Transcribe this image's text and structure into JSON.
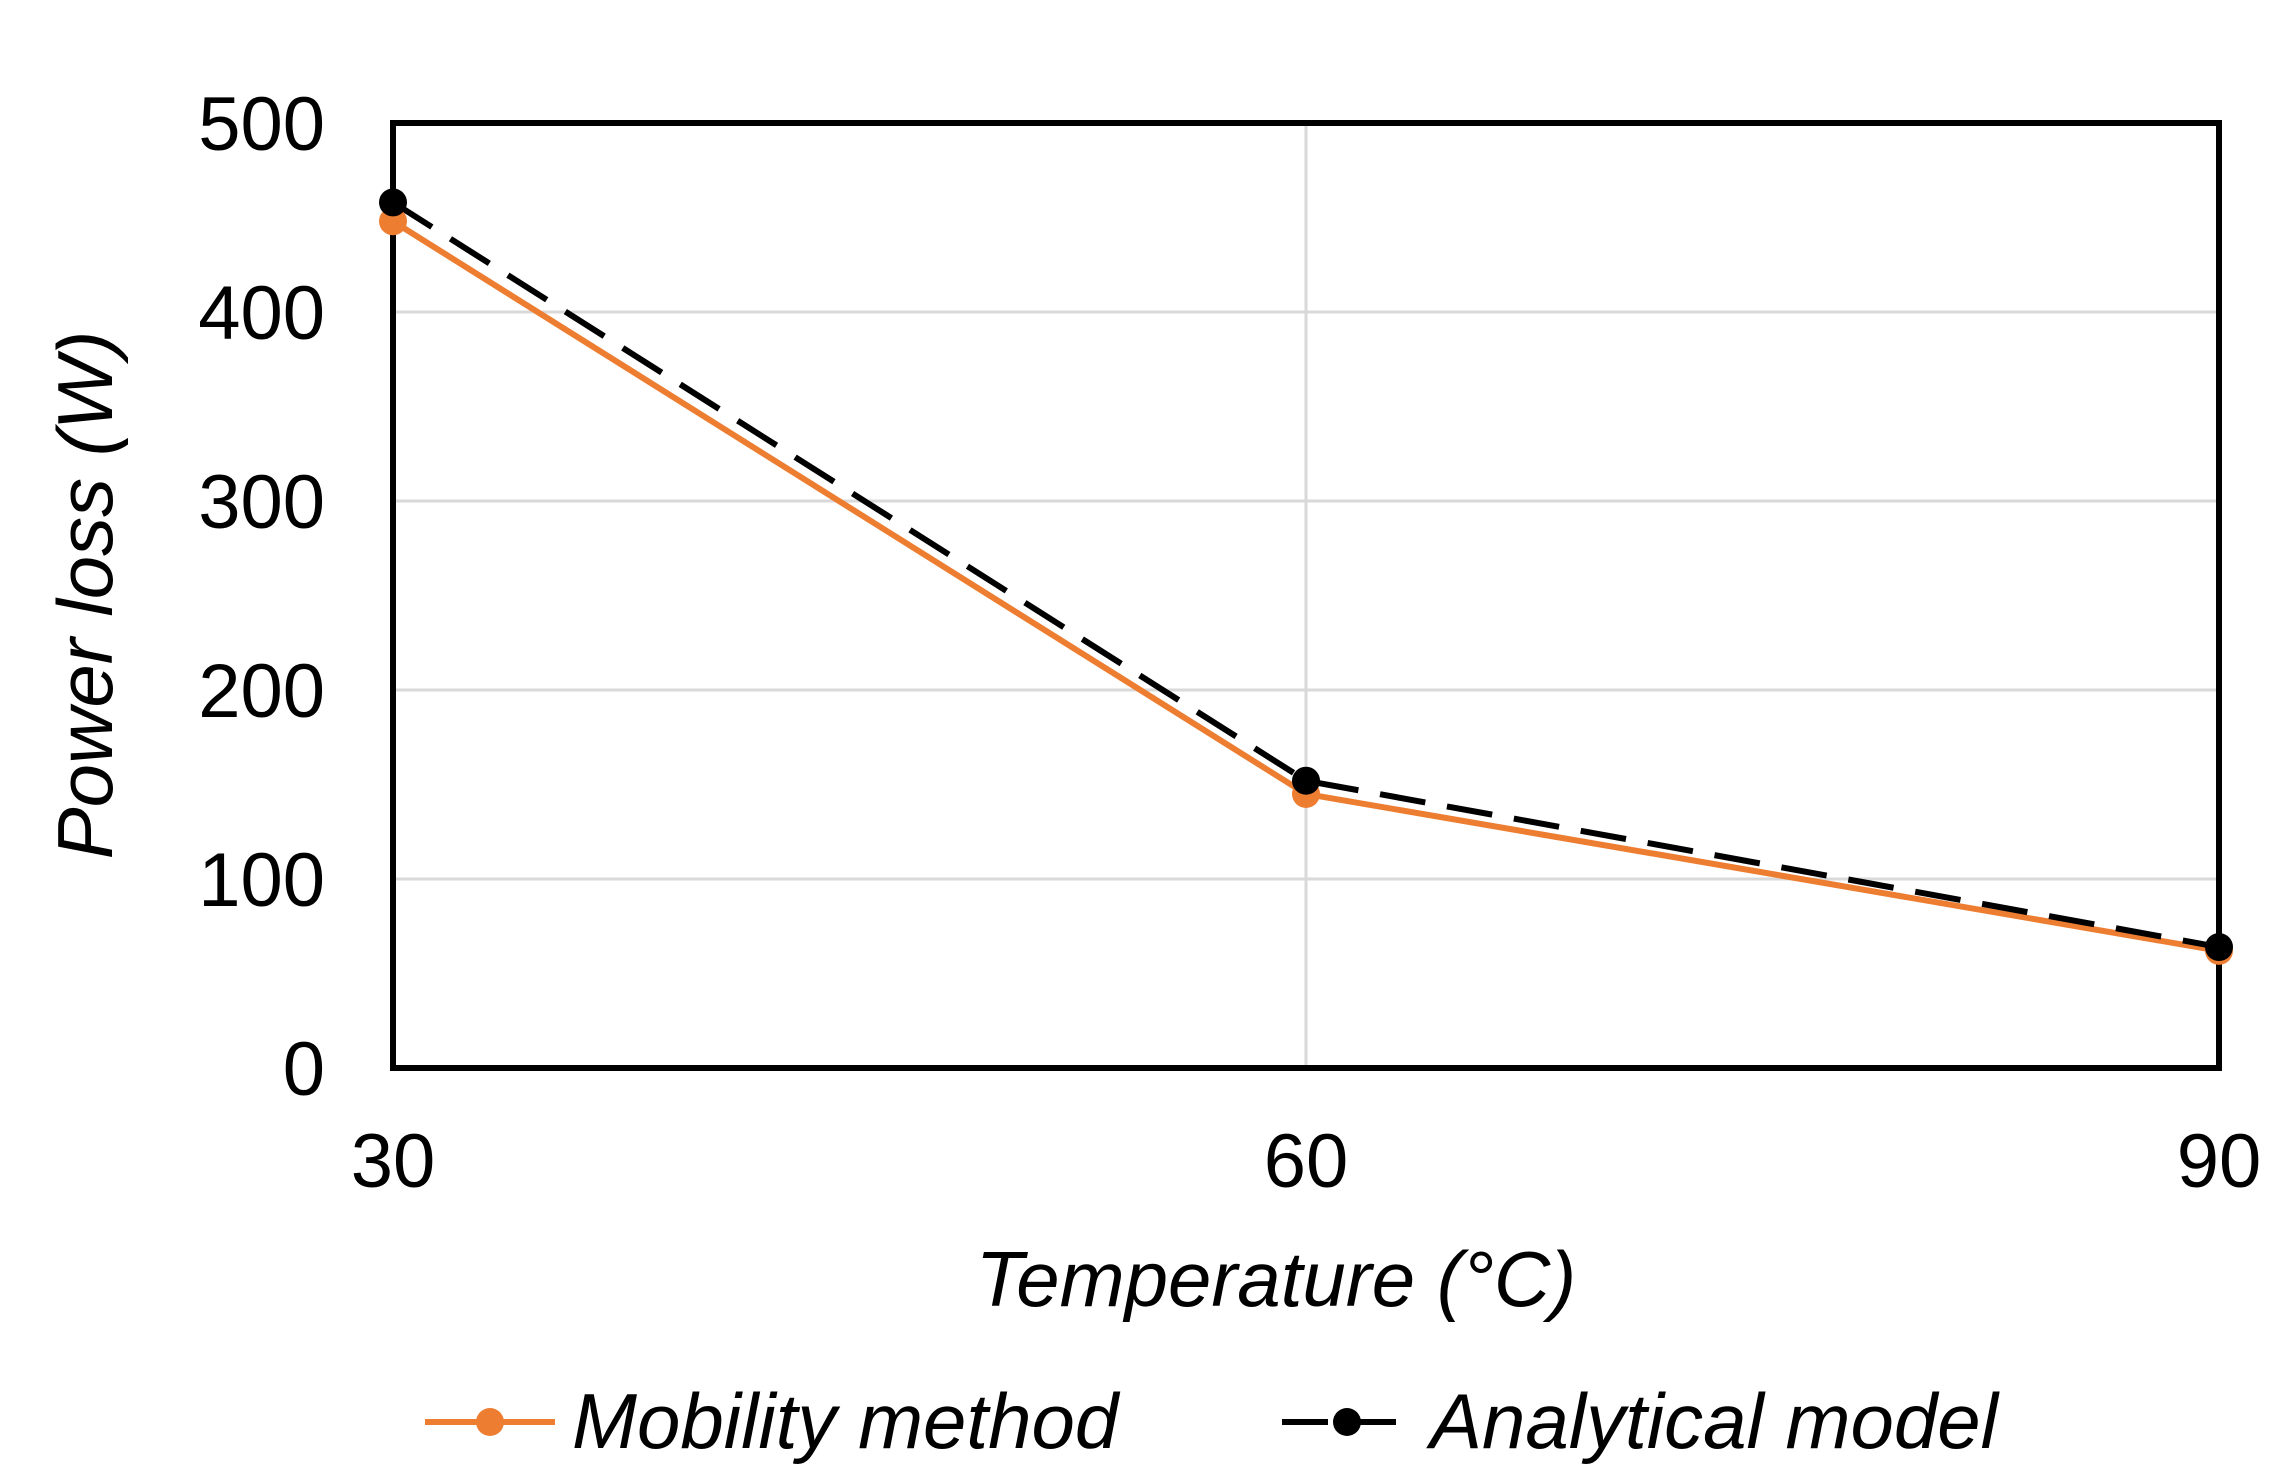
{
  "chart_data": {
    "type": "line",
    "title": "",
    "xlabel": "Temperature (°C)",
    "ylabel": "Power loss (W)",
    "x": [
      30,
      60,
      90
    ],
    "xticks": [
      "30",
      "60",
      "90"
    ],
    "yticks": [
      "0",
      "100",
      "200",
      "300",
      "400",
      "500"
    ],
    "xlim": [
      30,
      90
    ],
    "ylim": [
      0,
      500
    ],
    "grid": true,
    "legend_position": "bottom",
    "series": [
      {
        "name": "Mobility method",
        "values": [
          448,
          145,
          62
        ],
        "color": "#ED7D31",
        "line_style": "solid",
        "marker": "circle"
      },
      {
        "name": "Analytical model",
        "values": [
          458,
          152,
          64
        ],
        "color": "#000000",
        "line_style": "dashed",
        "marker": "circle"
      }
    ]
  },
  "colors": {
    "grid": "#D9D9D9",
    "frame": "#000000",
    "background": "#FFFFFF"
  }
}
